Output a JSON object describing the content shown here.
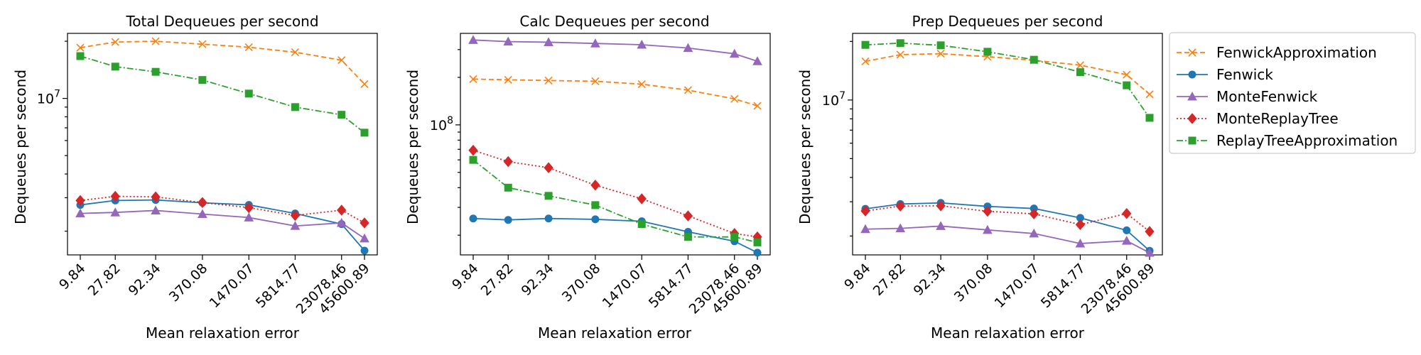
{
  "chart_data": [
    {
      "type": "line",
      "title": "Total Dequeues per second",
      "xlabel": "Mean relaxation error",
      "ylabel": "Dequeues per second",
      "categories": [
        "9.84",
        "27.82",
        "92.34",
        "370.08",
        "1470.07",
        "5814.77",
        "23078.46",
        "45600.89"
      ],
      "x": [
        9.84,
        27.82,
        92.34,
        370.08,
        1470.07,
        5814.77,
        23078.46,
        45600.89
      ],
      "xscale": "log",
      "yscale": "log",
      "ylim": [
        1500000,
        22000000
      ],
      "y_tick_values": [
        10000000
      ],
      "y_tick_labels": [
        "10^7"
      ],
      "grid": false,
      "series": [
        {
          "name": "FenwickApproximation",
          "values": [
            18500000,
            19800000,
            20000000,
            19300000,
            18600000,
            17500000,
            15900000,
            11900000
          ]
        },
        {
          "name": "Fenwick",
          "values": [
            2750000,
            2900000,
            2920000,
            2820000,
            2750000,
            2480000,
            2180000,
            1580000
          ]
        },
        {
          "name": "MonteFenwick",
          "values": [
            2480000,
            2510000,
            2570000,
            2460000,
            2360000,
            2130000,
            2210000,
            1830000
          ]
        },
        {
          "name": "MonteReplayTree",
          "values": [
            2900000,
            3050000,
            3030000,
            2830000,
            2660000,
            2420000,
            2580000,
            2210000
          ]
        },
        {
          "name": "ReplayTreeApproximation",
          "values": [
            16700000,
            14700000,
            13800000,
            12500000,
            10600000,
            9000000,
            8200000,
            6600000
          ]
        }
      ]
    },
    {
      "type": "line",
      "title": "Calc Dequeues per second",
      "xlabel": "Mean relaxation error",
      "ylabel": "Dequeues per second",
      "categories": [
        "9.84",
        "27.82",
        "92.34",
        "370.08",
        "1470.07",
        "5814.77",
        "23078.46",
        "45600.89"
      ],
      "x": [
        9.84,
        27.82,
        92.34,
        370.08,
        1470.07,
        5814.77,
        23078.46,
        45600.89
      ],
      "xscale": "log",
      "yscale": "log",
      "ylim": [
        15000000,
        380000000
      ],
      "y_tick_values": [
        100000000
      ],
      "y_tick_labels": [
        "10^8"
      ],
      "grid": false,
      "series": [
        {
          "name": "FenwickApproximation",
          "values": [
            195000000,
            193000000,
            191000000,
            189000000,
            181000000,
            166000000,
            146000000,
            132000000
          ]
        },
        {
          "name": "Fenwick",
          "values": [
            25500000,
            25000000,
            25500000,
            25200000,
            24500000,
            21000000,
            18300000,
            15500000
          ]
        },
        {
          "name": "MonteFenwick",
          "values": [
            345000000,
            337000000,
            334000000,
            328000000,
            322000000,
            307000000,
            282000000,
            253000000
          ]
        },
        {
          "name": "MonteReplayTree",
          "values": [
            69000000,
            58500000,
            53500000,
            41500000,
            34000000,
            26500000,
            20500000,
            19500000
          ]
        },
        {
          "name": "ReplayTreeApproximation",
          "values": [
            60000000,
            40000000,
            35500000,
            31000000,
            23500000,
            19500000,
            19500000,
            18000000
          ]
        }
      ]
    },
    {
      "type": "line",
      "title": "Prep Dequeues per second",
      "xlabel": "Mean relaxation error",
      "ylabel": "Dequeues per second",
      "categories": [
        "9.84",
        "27.82",
        "92.34",
        "370.08",
        "1470.07",
        "5814.77",
        "23078.46",
        "45600.89"
      ],
      "x": [
        9.84,
        27.82,
        92.34,
        370.08,
        1470.07,
        5814.77,
        23078.46,
        45600.89
      ],
      "xscale": "log",
      "yscale": "log",
      "ylim": [
        1600000,
        22000000
      ],
      "y_tick_values": [
        10000000
      ],
      "y_tick_labels": [
        "10^7"
      ],
      "grid": false,
      "series": [
        {
          "name": "FenwickApproximation",
          "values": [
            15800000,
            17100000,
            17300000,
            16700000,
            16000000,
            15100000,
            13500000,
            10700000
          ]
        },
        {
          "name": "Fenwick",
          "values": [
            2760000,
            2920000,
            2960000,
            2840000,
            2770000,
            2480000,
            2140000,
            1680000
          ]
        },
        {
          "name": "MonteFenwick",
          "values": [
            2170000,
            2190000,
            2250000,
            2150000,
            2060000,
            1830000,
            1890000,
            1640000
          ]
        },
        {
          "name": "MonteReplayTree",
          "values": [
            2690000,
            2850000,
            2860000,
            2680000,
            2600000,
            2290000,
            2610000,
            2110000
          ]
        },
        {
          "name": "ReplayTreeApproximation",
          "values": [
            19200000,
            19600000,
            19100000,
            17700000,
            16100000,
            13900000,
            11900000,
            8100000
          ]
        }
      ]
    }
  ],
  "legend": {
    "placement": "upper right, outside plots",
    "entries": [
      {
        "label": "FenwickApproximation",
        "color": "#ff7f0e",
        "marker": "x",
        "line": "dashed"
      },
      {
        "label": "Fenwick",
        "color": "#1f77b4",
        "marker": "circle",
        "line": "solid"
      },
      {
        "label": "MonteFenwick",
        "color": "#9467bd",
        "marker": "triangle",
        "line": "solid"
      },
      {
        "label": "MonteReplayTree",
        "color": "#d62728",
        "marker": "diamond",
        "line": "dotted"
      },
      {
        "label": "ReplayTreeApproximation",
        "color": "#2ca02c",
        "marker": "square",
        "line": "dashdot"
      }
    ]
  }
}
